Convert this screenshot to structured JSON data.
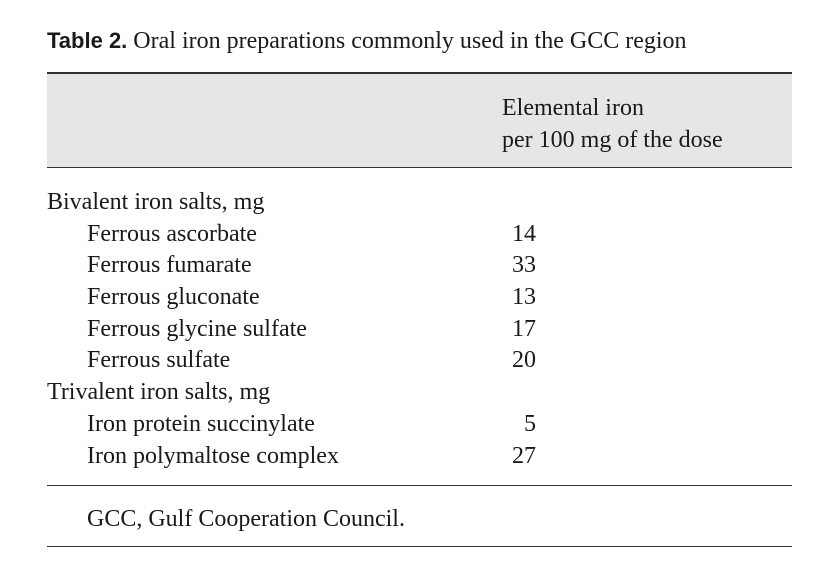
{
  "caption": {
    "label": "Table 2.",
    "title": "Oral iron preparations commonly used in the GCC region"
  },
  "header": {
    "column_line1": "Elemental iron",
    "column_line2": "per 100 mg of the dose"
  },
  "groups": [
    {
      "title": "Bivalent iron salts, mg",
      "rows": [
        {
          "name": "Ferrous ascorbate",
          "value": "14"
        },
        {
          "name": "Ferrous fumarate",
          "value": "33"
        },
        {
          "name": "Ferrous gluconate",
          "value": "13"
        },
        {
          "name": "Ferrous glycine sulfate",
          "value": "17"
        },
        {
          "name": "Ferrous sulfate",
          "value": "20"
        }
      ]
    },
    {
      "title": "Trivalent iron salts, mg",
      "rows": [
        {
          "name": "Iron protein succinylate",
          "value": "5"
        },
        {
          "name": "Iron polymaltose complex",
          "value": "27"
        }
      ]
    }
  ],
  "footnote": "GCC, Gulf Cooperation Council."
}
